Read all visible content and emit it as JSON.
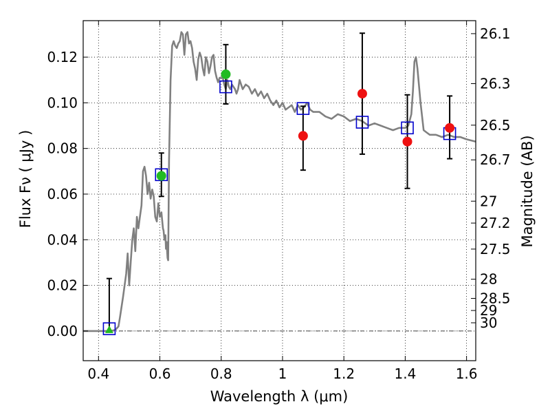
{
  "chart_data": {
    "type": "scatter",
    "title": "",
    "xlabel": "Wavelength  λ (μm)",
    "ylabel": "Flux  Fν  ( μJy )",
    "y2label": "Magnitude (AB)",
    "xlim": [
      0.35,
      1.63
    ],
    "ylim": [
      -0.013,
      0.136
    ],
    "xticks": [
      0.4,
      0.6,
      0.8,
      1.0,
      1.2,
      1.4,
      1.6
    ],
    "xtick_labels": [
      "0.4",
      "0.6",
      "0.8",
      "1",
      "1.2",
      "1.4",
      "1.6"
    ],
    "yticks": [
      0.0,
      0.02,
      0.04,
      0.06,
      0.08,
      0.1,
      0.12
    ],
    "ytick_labels": [
      "0.00",
      "0.02",
      "0.04",
      "0.06",
      "0.08",
      "0.10",
      "0.12"
    ],
    "mag_ticks": [
      {
        "label": "26.1",
        "flux": 0.1303
      },
      {
        "label": "26.3",
        "flux": 0.1084
      },
      {
        "label": "26.5",
        "flux": 0.0902
      },
      {
        "label": "26.7",
        "flux": 0.075
      },
      {
        "label": "27",
        "flux": 0.0569
      },
      {
        "label": "27.2",
        "flux": 0.0473
      },
      {
        "label": "27.5",
        "flux": 0.0359
      },
      {
        "label": "28",
        "flux": 0.0227
      },
      {
        "label": "28.5",
        "flux": 0.0143
      },
      {
        "label": "29",
        "flux": 0.009
      },
      {
        "label": "30",
        "flux": 0.0036
      }
    ],
    "grid": true,
    "zero_line": true,
    "colors": {
      "model": "#808080",
      "green": "#22bb22",
      "red": "#ee1111",
      "square": "#0000cc",
      "errorbar": "#000000"
    },
    "series": [
      {
        "kind": "line",
        "x": [
          0.35,
          0.44,
          0.455,
          0.465,
          0.47,
          0.48,
          0.49,
          0.495,
          0.5,
          0.505,
          0.51,
          0.515,
          0.52,
          0.525,
          0.53,
          0.535,
          0.54,
          0.545,
          0.55,
          0.555,
          0.56,
          0.565,
          0.57,
          0.575,
          0.58,
          0.585,
          0.59,
          0.595,
          0.6,
          0.605,
          0.61,
          0.612,
          0.615,
          0.618,
          0.62,
          0.622,
          0.625,
          0.627,
          0.63,
          0.635,
          0.64,
          0.645,
          0.65,
          0.655,
          0.66,
          0.665,
          0.67,
          0.675,
          0.68,
          0.685,
          0.69,
          0.695,
          0.7,
          0.705,
          0.71,
          0.715,
          0.72,
          0.725,
          0.73,
          0.735,
          0.74,
          0.745,
          0.75,
          0.755,
          0.76,
          0.765,
          0.77,
          0.775,
          0.78,
          0.785,
          0.79,
          0.795,
          0.8,
          0.805,
          0.81,
          0.815,
          0.82,
          0.825,
          0.83,
          0.835,
          0.84,
          0.845,
          0.85,
          0.855,
          0.86,
          0.87,
          0.88,
          0.89,
          0.9,
          0.91,
          0.92,
          0.93,
          0.94,
          0.95,
          0.96,
          0.97,
          0.98,
          0.99,
          1.0,
          1.01,
          1.02,
          1.03,
          1.04,
          1.05,
          1.06,
          1.07,
          1.08,
          1.09,
          1.1,
          1.12,
          1.14,
          1.16,
          1.18,
          1.2,
          1.22,
          1.24,
          1.26,
          1.28,
          1.3,
          1.32,
          1.34,
          1.36,
          1.38,
          1.4,
          1.41,
          1.42,
          1.425,
          1.43,
          1.435,
          1.44,
          1.45,
          1.46,
          1.47,
          1.48,
          1.5,
          1.52,
          1.54,
          1.56,
          1.58,
          1.6,
          1.63
        ],
        "y": [
          0.0,
          0.0,
          0.0005,
          0.002,
          0.006,
          0.015,
          0.025,
          0.034,
          0.02,
          0.03,
          0.04,
          0.045,
          0.035,
          0.05,
          0.045,
          0.05,
          0.055,
          0.07,
          0.072,
          0.068,
          0.06,
          0.065,
          0.058,
          0.062,
          0.059,
          0.05,
          0.048,
          0.056,
          0.05,
          0.052,
          0.045,
          0.044,
          0.04,
          0.042,
          0.036,
          0.039,
          0.032,
          0.031,
          0.075,
          0.11,
          0.125,
          0.127,
          0.125,
          0.124,
          0.126,
          0.127,
          0.131,
          0.13,
          0.121,
          0.13,
          0.131,
          0.126,
          0.127,
          0.124,
          0.118,
          0.115,
          0.11,
          0.119,
          0.122,
          0.12,
          0.115,
          0.112,
          0.12,
          0.118,
          0.113,
          0.116,
          0.12,
          0.121,
          0.114,
          0.111,
          0.109,
          0.111,
          0.111,
          0.111,
          0.108,
          0.106,
          0.11,
          0.107,
          0.106,
          0.108,
          0.107,
          0.106,
          0.104,
          0.106,
          0.11,
          0.106,
          0.108,
          0.107,
          0.104,
          0.106,
          0.103,
          0.105,
          0.102,
          0.104,
          0.101,
          0.099,
          0.101,
          0.098,
          0.1,
          0.097,
          0.098,
          0.099,
          0.096,
          0.099,
          0.097,
          0.098,
          0.1,
          0.097,
          0.096,
          0.096,
          0.094,
          0.093,
          0.095,
          0.094,
          0.092,
          0.093,
          0.092,
          0.09,
          0.091,
          0.09,
          0.089,
          0.088,
          0.089,
          0.089,
          0.09,
          0.095,
          0.105,
          0.118,
          0.12,
          0.115,
          0.1,
          0.088,
          0.087,
          0.086,
          0.086,
          0.085,
          0.086,
          0.085,
          0.085,
          0.084,
          0.083
        ]
      },
      {
        "kind": "errorbar",
        "x": [
          0.435,
          0.605,
          0.815,
          1.067,
          1.26,
          1.407,
          1.545
        ],
        "ylo": [
          0.0,
          0.059,
          0.0995,
          0.0705,
          0.0775,
          0.0625,
          0.0755
        ],
        "yhi": [
          0.023,
          0.078,
          0.1255,
          0.0985,
          0.1305,
          0.1035,
          0.103
        ]
      },
      {
        "kind": "square",
        "x": [
          0.435,
          0.605,
          0.815,
          1.067,
          1.26,
          1.407,
          1.545
        ],
        "y": [
          0.001,
          0.0685,
          0.107,
          0.0975,
          0.0915,
          0.089,
          0.0865
        ]
      },
      {
        "kind": "green-marker",
        "x": [
          0.435,
          0.605,
          0.815
        ],
        "y": [
          0.0,
          0.068,
          0.1125
        ],
        "shapes": [
          "triangle",
          "circle",
          "circle"
        ]
      },
      {
        "kind": "red-marker",
        "x": [
          1.067,
          1.26,
          1.407,
          1.545
        ],
        "y": [
          0.0855,
          0.104,
          0.083,
          0.089
        ]
      }
    ]
  }
}
